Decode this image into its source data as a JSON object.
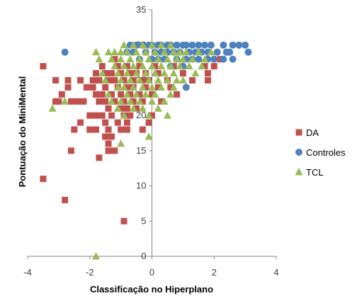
{
  "chart_data": {
    "type": "scatter",
    "title": "",
    "xlabel": "Classificação no Hiperplano",
    "ylabel": "Pontuação do MiniMental",
    "xlim": [
      -4,
      4
    ],
    "ylim": [
      0,
      35
    ],
    "xticks": [
      -4,
      -2,
      0,
      2,
      4
    ],
    "yticks": [
      0,
      5,
      10,
      15,
      20,
      25,
      30,
      35
    ],
    "grid": false,
    "legend_position": "right",
    "series": [
      {
        "name": "DA",
        "color": "#C0504D",
        "marker": "square",
        "points": [
          [
            -3.5,
            27
          ],
          [
            -3.5,
            11
          ],
          [
            -2.8,
            8
          ],
          [
            -3.1,
            25
          ],
          [
            -3.1,
            22
          ],
          [
            -3.0,
            22
          ],
          [
            -2.9,
            23
          ],
          [
            -2.7,
            25
          ],
          [
            -2.7,
            24
          ],
          [
            -2.6,
            22
          ],
          [
            -2.6,
            15
          ],
          [
            -2.5,
            18
          ],
          [
            -2.4,
            22
          ],
          [
            -2.3,
            25
          ],
          [
            -2.3,
            19
          ],
          [
            -2.2,
            22
          ],
          [
            -2.1,
            24
          ],
          [
            -2.0,
            20
          ],
          [
            -2.0,
            18
          ],
          [
            -1.9,
            25
          ],
          [
            -1.9,
            24
          ],
          [
            -1.8,
            26
          ],
          [
            -1.8,
            23
          ],
          [
            -1.8,
            20
          ],
          [
            -1.8,
            18
          ],
          [
            -1.7,
            25
          ],
          [
            -1.7,
            22
          ],
          [
            -1.7,
            14
          ],
          [
            -1.6,
            27
          ],
          [
            -1.6,
            23
          ],
          [
            -1.6,
            20
          ],
          [
            -1.5,
            26
          ],
          [
            -1.5,
            24
          ],
          [
            -1.5,
            22
          ],
          [
            -1.5,
            19
          ],
          [
            -1.5,
            17
          ],
          [
            -1.4,
            25
          ],
          [
            -1.4,
            21
          ],
          [
            -1.4,
            18
          ],
          [
            -1.4,
            16
          ],
          [
            -1.4,
            15
          ],
          [
            -1.3,
            26
          ],
          [
            -1.3,
            23
          ],
          [
            -1.3,
            20
          ],
          [
            -1.3,
            17
          ],
          [
            -1.2,
            28
          ],
          [
            -1.2,
            25
          ],
          [
            -1.2,
            22
          ],
          [
            -1.2,
            15
          ],
          [
            -1.1,
            27
          ],
          [
            -1.1,
            24
          ],
          [
            -1.1,
            19
          ],
          [
            -1.0,
            26
          ],
          [
            -1.0,
            23
          ],
          [
            -1.0,
            21
          ],
          [
            -1.0,
            18
          ],
          [
            -0.9,
            25
          ],
          [
            -0.9,
            22
          ],
          [
            -0.9,
            20
          ],
          [
            -0.9,
            5
          ],
          [
            -0.8,
            27
          ],
          [
            -0.8,
            24
          ],
          [
            -0.8,
            21
          ],
          [
            -0.8,
            19
          ],
          [
            -0.8,
            18
          ],
          [
            -0.7,
            26
          ],
          [
            -0.7,
            23
          ],
          [
            -0.7,
            20
          ],
          [
            -0.6,
            25
          ],
          [
            -0.6,
            22
          ],
          [
            -0.6,
            24
          ],
          [
            -0.5,
            26
          ],
          [
            -0.5,
            21
          ],
          [
            -0.4,
            27
          ],
          [
            -0.4,
            23
          ],
          [
            -0.3,
            25
          ],
          [
            -0.3,
            22
          ],
          [
            -0.3,
            18
          ],
          [
            -0.2,
            26
          ],
          [
            -0.2,
            24
          ],
          [
            -0.1,
            25
          ],
          [
            -0.1,
            19
          ],
          [
            0.0,
            23
          ],
          [
            0.0,
            20
          ],
          [
            0.1,
            27
          ],
          [
            0.2,
            26
          ],
          [
            0.2,
            24
          ],
          [
            0.3,
            22
          ],
          [
            0.5,
            25
          ],
          [
            0.6,
            24
          ],
          [
            0.7,
            27
          ],
          [
            0.8,
            23
          ],
          [
            1.0,
            26
          ],
          [
            1.3,
            25
          ],
          [
            1.7,
            27
          ],
          [
            1.8,
            26
          ],
          [
            1.8,
            25
          ],
          [
            2.0,
            27
          ],
          [
            2.2,
            28
          ]
        ]
      },
      {
        "name": "Controles",
        "color": "#4F81BD",
        "marker": "circle",
        "points": [
          [
            -2.8,
            29
          ],
          [
            -0.8,
            29
          ],
          [
            -0.7,
            30
          ],
          [
            -0.6,
            29
          ],
          [
            -0.5,
            30
          ],
          [
            -0.4,
            28
          ],
          [
            -0.3,
            30
          ],
          [
            -0.2,
            29
          ],
          [
            -0.1,
            30
          ],
          [
            0.0,
            28
          ],
          [
            0.0,
            30
          ],
          [
            0.1,
            29
          ],
          [
            0.2,
            30
          ],
          [
            0.2,
            28
          ],
          [
            0.3,
            29
          ],
          [
            0.3,
            30
          ],
          [
            0.4,
            28
          ],
          [
            0.5,
            30
          ],
          [
            0.5,
            29
          ],
          [
            0.6,
            27
          ],
          [
            0.6,
            30
          ],
          [
            0.7,
            29
          ],
          [
            0.8,
            30
          ],
          [
            0.8,
            28
          ],
          [
            0.9,
            29
          ],
          [
            1.0,
            30
          ],
          [
            1.0,
            27
          ],
          [
            1.1,
            28
          ],
          [
            1.1,
            30
          ],
          [
            1.1,
            24
          ],
          [
            1.2,
            29
          ],
          [
            1.3,
            30
          ],
          [
            1.3,
            28
          ],
          [
            1.4,
            29
          ],
          [
            1.5,
            30
          ],
          [
            1.5,
            28
          ],
          [
            1.6,
            29
          ],
          [
            1.7,
            30
          ],
          [
            1.8,
            28
          ],
          [
            1.8,
            29
          ],
          [
            1.9,
            30
          ],
          [
            2.0,
            28
          ],
          [
            2.1,
            29
          ],
          [
            2.3,
            28
          ],
          [
            2.3,
            30
          ],
          [
            2.4,
            29
          ],
          [
            2.5,
            29
          ],
          [
            2.6,
            28
          ],
          [
            2.6,
            30
          ],
          [
            2.8,
            30
          ],
          [
            3.0,
            30
          ],
          [
            3.1,
            29
          ]
        ]
      },
      {
        "name": "TCL",
        "color": "#9BBB59",
        "marker": "triangle",
        "points": [
          [
            -3.2,
            21
          ],
          [
            -2.8,
            22
          ],
          [
            -1.8,
            29
          ],
          [
            -1.7,
            28
          ],
          [
            -1.6,
            26
          ],
          [
            -1.5,
            25
          ],
          [
            -1.4,
            29
          ],
          [
            -1.4,
            23
          ],
          [
            -1.3,
            28
          ],
          [
            -1.3,
            22
          ],
          [
            -1.2,
            27
          ],
          [
            -1.2,
            29
          ],
          [
            -1.1,
            26
          ],
          [
            -1.1,
            24
          ],
          [
            -1.1,
            21
          ],
          [
            -1.0,
            29
          ],
          [
            -1.0,
            28
          ],
          [
            -1.0,
            25
          ],
          [
            -1.0,
            22
          ],
          [
            -1.0,
            16
          ],
          [
            -0.9,
            30
          ],
          [
            -0.9,
            27
          ],
          [
            -0.9,
            24
          ],
          [
            -0.9,
            20
          ],
          [
            -0.8,
            29
          ],
          [
            -0.8,
            26
          ],
          [
            -0.8,
            23
          ],
          [
            -0.7,
            28
          ],
          [
            -0.7,
            25
          ],
          [
            -0.7,
            22
          ],
          [
            -0.6,
            30
          ],
          [
            -0.6,
            27
          ],
          [
            -0.6,
            24
          ],
          [
            -0.6,
            21
          ],
          [
            -0.5,
            29
          ],
          [
            -0.5,
            26
          ],
          [
            -0.5,
            23
          ],
          [
            -0.4,
            28
          ],
          [
            -0.4,
            25
          ],
          [
            -0.4,
            22
          ],
          [
            -0.3,
            30
          ],
          [
            -0.3,
            27
          ],
          [
            -0.3,
            24
          ],
          [
            -0.3,
            21
          ],
          [
            -0.2,
            29
          ],
          [
            -0.2,
            26
          ],
          [
            -0.2,
            23
          ],
          [
            -0.1,
            28
          ],
          [
            -0.1,
            25
          ],
          [
            -0.1,
            20
          ],
          [
            -0.1,
            17
          ],
          [
            0.0,
            30
          ],
          [
            0.0,
            27
          ],
          [
            0.0,
            24
          ],
          [
            0.0,
            22
          ],
          [
            0.1,
            29
          ],
          [
            0.1,
            26
          ],
          [
            0.1,
            23
          ],
          [
            0.2,
            28
          ],
          [
            0.2,
            25
          ],
          [
            0.2,
            21
          ],
          [
            0.3,
            30
          ],
          [
            0.3,
            27
          ],
          [
            0.3,
            24
          ],
          [
            0.4,
            29
          ],
          [
            0.4,
            26
          ],
          [
            0.4,
            22
          ],
          [
            0.5,
            28
          ],
          [
            0.5,
            25
          ],
          [
            0.5,
            20
          ],
          [
            0.6,
            30
          ],
          [
            0.6,
            27
          ],
          [
            0.6,
            23
          ],
          [
            0.7,
            29
          ],
          [
            0.7,
            26
          ],
          [
            0.7,
            24
          ],
          [
            0.8,
            28
          ],
          [
            0.8,
            25
          ],
          [
            0.9,
            29
          ],
          [
            0.9,
            27
          ],
          [
            1.0,
            28
          ],
          [
            1.0,
            25
          ],
          [
            1.1,
            29
          ],
          [
            1.2,
            27
          ],
          [
            1.3,
            28
          ],
          [
            1.4,
            26
          ],
          [
            1.5,
            29
          ],
          [
            1.6,
            27
          ],
          [
            1.7,
            28
          ],
          [
            1.9,
            29
          ],
          [
            -1.8,
            0
          ]
        ]
      }
    ]
  }
}
